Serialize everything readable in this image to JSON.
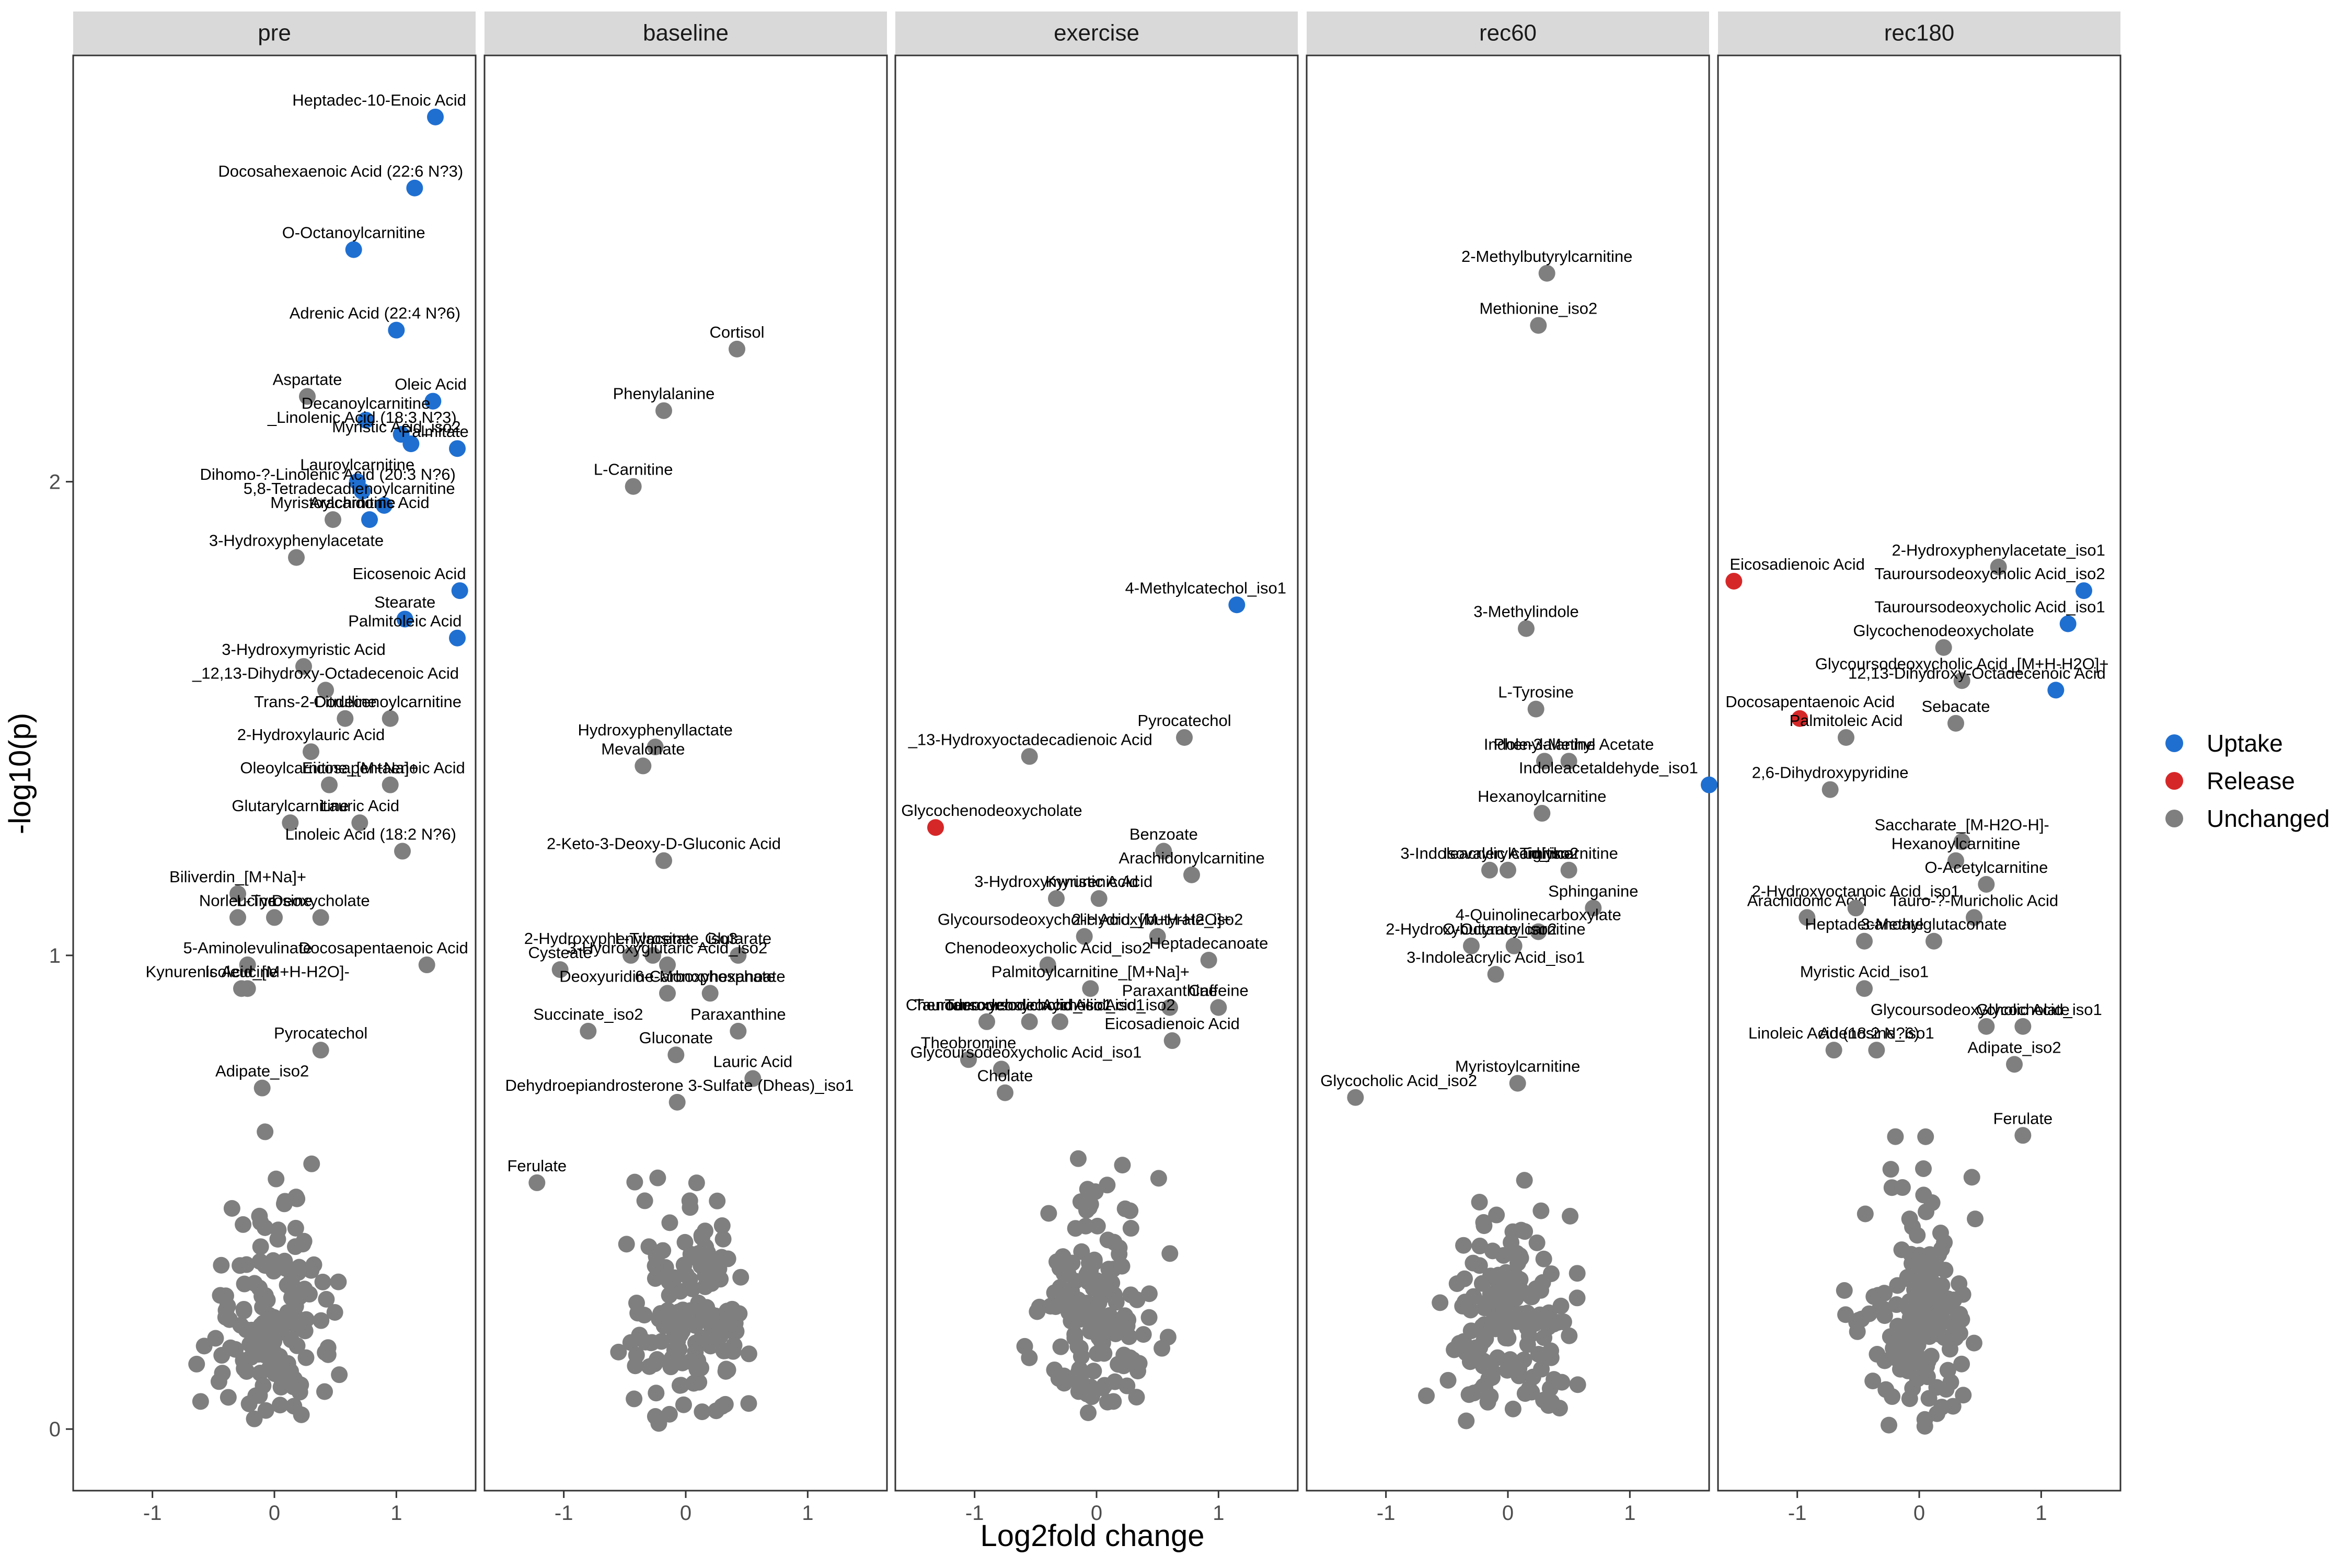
{
  "chart_data": {
    "type": "scatter",
    "xlabel": "Log2fold change",
    "ylabel": "-log10(p)",
    "x_ticks": [
      "-1",
      "0",
      "1"
    ],
    "y_ticks": [
      "0",
      "1",
      "2"
    ],
    "xlim": [
      -1.65,
      1.65
    ],
    "ylim": [
      -0.13,
      2.9
    ],
    "colors": {
      "Uptake": "#1f6fd1",
      "Release": "#d62728",
      "Unchanged": "#7f7f7f"
    },
    "legend": {
      "placement": "right",
      "items": [
        {
          "label": "Uptake",
          "color": "#1f6fd1"
        },
        {
          "label": "Release",
          "color": "#d62728"
        },
        {
          "label": "Unchanged",
          "color": "#7f7f7f"
        }
      ]
    },
    "panels": [
      {
        "name": "pre",
        "labeled_points": [
          {
            "label": "Heptadec-10-Enoic Acid",
            "x": 1.32,
            "y": 2.77,
            "status": "Uptake"
          },
          {
            "label": "Docosahexaenoic Acid (22:6 N?3)",
            "x": 1.15,
            "y": 2.62,
            "status": "Uptake"
          },
          {
            "label": "O-Octanoylcarnitine",
            "x": 0.65,
            "y": 2.49,
            "status": "Uptake"
          },
          {
            "label": "Adrenic Acid (22:4 N?6)",
            "x": 1.0,
            "y": 2.32,
            "status": "Uptake"
          },
          {
            "label": "Aspartate",
            "x": 0.27,
            "y": 2.18,
            "status": "Unchanged"
          },
          {
            "label": "Oleic Acid",
            "x": 1.3,
            "y": 2.17,
            "status": "Uptake"
          },
          {
            "label": "Decanoylcarnitine",
            "x": 0.75,
            "y": 2.13,
            "status": "Uptake"
          },
          {
            "label": "_Linolenic Acid (18:3 N?3)",
            "x": 1.04,
            "y": 2.1,
            "status": "Uptake"
          },
          {
            "label": "Myristic Acid_iso2",
            "x": 1.12,
            "y": 2.08,
            "status": "Uptake"
          },
          {
            "label": "Lauroylcarnitine",
            "x": 0.68,
            "y": 2.0,
            "status": "Uptake"
          },
          {
            "label": "Palmitate",
            "x": 1.5,
            "y": 2.07,
            "status": "Uptake"
          },
          {
            "label": "Dihomo-?-Linolenic Acid (20:3 N?6)",
            "x": 0.72,
            "y": 1.98,
            "status": "Uptake"
          },
          {
            "label": "5,8-Tetradecadienoylcarnitine",
            "x": 0.9,
            "y": 1.95,
            "status": "Uptake"
          },
          {
            "label": "Myristoylcarnitine",
            "x": 0.48,
            "y": 1.92,
            "status": "Unchanged"
          },
          {
            "label": "Arachidonic Acid",
            "x": 0.78,
            "y": 1.92,
            "status": "Uptake"
          },
          {
            "label": "3-Hydroxyphenylacetate",
            "x": 0.18,
            "y": 1.84,
            "status": "Unchanged"
          },
          {
            "label": "Eicosenoic Acid",
            "x": 1.52,
            "y": 1.77,
            "status": "Uptake"
          },
          {
            "label": "Stearate",
            "x": 1.07,
            "y": 1.71,
            "status": "Uptake"
          },
          {
            "label": "Palmitoleic Acid",
            "x": 1.5,
            "y": 1.67,
            "status": "Uptake"
          },
          {
            "label": "3-Hydroxymyristic Acid",
            "x": 0.24,
            "y": 1.61,
            "status": "Unchanged"
          },
          {
            "label": "_12,13-Dihydroxy-Octadecenoic Acid",
            "x": 0.42,
            "y": 1.56,
            "status": "Unchanged"
          },
          {
            "label": "Citrulline",
            "x": 0.58,
            "y": 1.5,
            "status": "Unchanged"
          },
          {
            "label": "Trans-2-Dodecenoylcarnitine",
            "x": 0.95,
            "y": 1.5,
            "status": "Unchanged"
          },
          {
            "label": "2-Hydroxylauric Acid",
            "x": 0.3,
            "y": 1.43,
            "status": "Unchanged"
          },
          {
            "label": "Oleoylcarnitine_[M+Na]+",
            "x": 0.45,
            "y": 1.36,
            "status": "Unchanged"
          },
          {
            "label": "Eicosapentaenoic Acid",
            "x": 0.95,
            "y": 1.36,
            "status": "Unchanged"
          },
          {
            "label": "Glutarylcarnitine",
            "x": 0.13,
            "y": 1.28,
            "status": "Unchanged"
          },
          {
            "label": "Lauric Acid",
            "x": 0.7,
            "y": 1.28,
            "status": "Unchanged"
          },
          {
            "label": "Linoleic Acid (18:2 N?6)",
            "x": 1.05,
            "y": 1.22,
            "status": "Unchanged"
          },
          {
            "label": "Biliverdin_[M+Na]+",
            "x": -0.3,
            "y": 1.13,
            "status": "Unchanged"
          },
          {
            "label": "Norleucine",
            "x": -0.3,
            "y": 1.08,
            "status": "Unchanged"
          },
          {
            "label": "L-Tyrosine",
            "x": 0.0,
            "y": 1.08,
            "status": "Unchanged"
          },
          {
            "label": "Deoxycholate",
            "x": 0.38,
            "y": 1.08,
            "status": "Unchanged"
          },
          {
            "label": "5-Aminolevulinate",
            "x": -0.22,
            "y": 0.98,
            "status": "Unchanged"
          },
          {
            "label": "Kynurenic Acid_[M+H-H2O]-",
            "x": -0.22,
            "y": 0.93,
            "status": "Unchanged"
          },
          {
            "label": "Docosapentaenoic Acid",
            "x": 1.25,
            "y": 0.98,
            "status": "Unchanged"
          },
          {
            "label": "Isoleucine",
            "x": -0.27,
            "y": 0.93,
            "status": "Unchanged"
          },
          {
            "label": "Pyrocatechol",
            "x": 0.38,
            "y": 0.8,
            "status": "Unchanged"
          },
          {
            "label": "Adipate_iso2",
            "x": -0.1,
            "y": 0.72,
            "status": "Unchanged"
          }
        ]
      },
      {
        "name": "baseline",
        "labeled_points": [
          {
            "label": "Cortisol",
            "x": 0.42,
            "y": 2.28,
            "status": "Unchanged"
          },
          {
            "label": "Phenylalanine",
            "x": -0.18,
            "y": 2.15,
            "status": "Unchanged"
          },
          {
            "label": "L-Carnitine",
            "x": -0.43,
            "y": 1.99,
            "status": "Unchanged"
          },
          {
            "label": "Hydroxyphenyllactate",
            "x": -0.25,
            "y": 1.44,
            "status": "Unchanged"
          },
          {
            "label": "Mevalonate",
            "x": -0.35,
            "y": 1.4,
            "status": "Unchanged"
          },
          {
            "label": "2-Keto-3-Deoxy-D-Gluconic Acid",
            "x": -0.18,
            "y": 1.2,
            "status": "Unchanged"
          },
          {
            "label": "2-Hydroxyphenylacetate_iso3",
            "x": -0.45,
            "y": 1.0,
            "status": "Unchanged"
          },
          {
            "label": "L-Tyrosine",
            "x": -0.27,
            "y": 1.0,
            "status": "Unchanged"
          },
          {
            "label": "Glutarate",
            "x": 0.43,
            "y": 1.0,
            "status": "Unchanged"
          },
          {
            "label": "Cysteate",
            "x": -1.03,
            "y": 0.97,
            "status": "Unchanged"
          },
          {
            "label": "3-Hydroxyglutaric Acid_iso2",
            "x": -0.15,
            "y": 0.98,
            "status": "Unchanged"
          },
          {
            "label": "6-Carboxyhexanoate",
            "x": 0.2,
            "y": 0.92,
            "status": "Unchanged"
          },
          {
            "label": "Deoxyuridine-Monophosphate",
            "x": -0.15,
            "y": 0.92,
            "status": "Unchanged"
          },
          {
            "label": "Paraxanthine",
            "x": 0.43,
            "y": 0.84,
            "status": "Unchanged"
          },
          {
            "label": "Succinate_iso2",
            "x": -0.8,
            "y": 0.84,
            "status": "Unchanged"
          },
          {
            "label": "Gluconate",
            "x": -0.08,
            "y": 0.79,
            "status": "Unchanged"
          },
          {
            "label": "Lauric Acid",
            "x": 0.55,
            "y": 0.74,
            "status": "Unchanged"
          },
          {
            "label": "Dehydroepiandrosterone 3-Sulfate (Dheas)_iso1",
            "x": -0.07,
            "y": 0.69,
            "status": "Unchanged"
          },
          {
            "label": "Ferulate",
            "x": -1.22,
            "y": 0.52,
            "status": "Unchanged"
          }
        ]
      },
      {
        "name": "exercise",
        "labeled_points": [
          {
            "label": "4-Methylcatechol_iso1",
            "x": 1.15,
            "y": 1.74,
            "status": "Uptake"
          },
          {
            "label": "Pyrocatechol",
            "x": 0.72,
            "y": 1.46,
            "status": "Unchanged"
          },
          {
            "label": "_13-Hydroxyoctadecadienoic Acid",
            "x": -0.55,
            "y": 1.42,
            "status": "Unchanged"
          },
          {
            "label": "Glycochenodeoxycholate",
            "x": -1.32,
            "y": 1.27,
            "status": "Release"
          },
          {
            "label": "Benzoate",
            "x": 0.55,
            "y": 1.22,
            "status": "Unchanged"
          },
          {
            "label": "Arachidonylcarnitine",
            "x": 0.78,
            "y": 1.17,
            "status": "Unchanged"
          },
          {
            "label": "3-Hydroxymyristic Acid",
            "x": -0.33,
            "y": 1.12,
            "status": "Unchanged"
          },
          {
            "label": "Kynurenic Acid",
            "x": 0.02,
            "y": 1.12,
            "status": "Unchanged"
          },
          {
            "label": "Glycoursodeoxycholic Acid_[M+H-H2O]+",
            "x": -0.1,
            "y": 1.04,
            "status": "Unchanged"
          },
          {
            "label": "2-Hydroxybutyrate_iso2",
            "x": 0.5,
            "y": 1.04,
            "status": "Unchanged"
          },
          {
            "label": "Heptadecanoate",
            "x": 0.92,
            "y": 0.99,
            "status": "Unchanged"
          },
          {
            "label": "Chenodeoxycholic Acid_iso2",
            "x": -0.4,
            "y": 0.98,
            "status": "Unchanged"
          },
          {
            "label": "Palmitoylcarnitine_[M+Na]+",
            "x": -0.05,
            "y": 0.93,
            "status": "Unchanged"
          },
          {
            "label": "Paraxanthine",
            "x": 0.6,
            "y": 0.89,
            "status": "Unchanged"
          },
          {
            "label": "Caffeine",
            "x": 1.0,
            "y": 0.89,
            "status": "Unchanged"
          },
          {
            "label": "Chenodeoxycholic Acid_iso1",
            "x": -0.9,
            "y": 0.86,
            "status": "Unchanged"
          },
          {
            "label": "Tauroursodeoxycholic Acid_iso1",
            "x": -0.55,
            "y": 0.86,
            "status": "Unchanged"
          },
          {
            "label": "Tauroursodeoxycholic Acid_iso2",
            "x": -0.3,
            "y": 0.86,
            "status": "Unchanged"
          },
          {
            "label": "Eicosadienoic Acid",
            "x": 0.62,
            "y": 0.82,
            "status": "Unchanged"
          },
          {
            "label": "Theobromine",
            "x": -1.05,
            "y": 0.78,
            "status": "Unchanged"
          },
          {
            "label": "Glycoursodeoxycholic Acid_iso1",
            "x": -0.78,
            "y": 0.76,
            "status": "Unchanged"
          },
          {
            "label": "Cholate",
            "x": -0.75,
            "y": 0.71,
            "status": "Unchanged"
          }
        ]
      },
      {
        "name": "rec60",
        "labeled_points": [
          {
            "label": "2-Methylbutyrylcarnitine",
            "x": 0.32,
            "y": 2.44,
            "status": "Unchanged"
          },
          {
            "label": "Methionine_iso2",
            "x": 0.25,
            "y": 2.33,
            "status": "Unchanged"
          },
          {
            "label": "3-Methylindole",
            "x": 0.15,
            "y": 1.69,
            "status": "Unchanged"
          },
          {
            "label": "L-Tyrosine",
            "x": 0.23,
            "y": 1.52,
            "status": "Unchanged"
          },
          {
            "label": "Indole-3-Methyl Acetate",
            "x": 0.5,
            "y": 1.41,
            "status": "Unchanged"
          },
          {
            "label": "Phenylalanine",
            "x": 0.3,
            "y": 1.41,
            "status": "Unchanged"
          },
          {
            "label": "Indoleacetaldehyde_iso1",
            "x": 1.65,
            "y": 1.36,
            "status": "Uptake"
          },
          {
            "label": "Hexanoylcarnitine",
            "x": 0.28,
            "y": 1.3,
            "status": "Unchanged"
          },
          {
            "label": "3-Indoleacrylic Acid_iso2",
            "x": -0.15,
            "y": 1.18,
            "status": "Unchanged"
          },
          {
            "label": "Isovalerylcarnitine",
            "x": 0.0,
            "y": 1.18,
            "status": "Unchanged"
          },
          {
            "label": "Tiglylcarnitine",
            "x": 0.5,
            "y": 1.18,
            "status": "Unchanged"
          },
          {
            "label": "Sphinganine",
            "x": 0.7,
            "y": 1.1,
            "status": "Unchanged"
          },
          {
            "label": "4-Quinolinecarboxylate",
            "x": 0.25,
            "y": 1.05,
            "status": "Unchanged"
          },
          {
            "label": "2-Hydroxybutyrate_iso2",
            "x": -0.3,
            "y": 1.02,
            "status": "Unchanged"
          },
          {
            "label": "O-Octanoylcarnitine",
            "x": 0.05,
            "y": 1.02,
            "status": "Unchanged"
          },
          {
            "label": "3-Indoleacrylic Acid_iso1",
            "x": -0.1,
            "y": 0.96,
            "status": "Unchanged"
          },
          {
            "label": "Myristoylcarnitine",
            "x": 0.08,
            "y": 0.73,
            "status": "Unchanged"
          },
          {
            "label": "Glycocholic Acid_iso2",
            "x": -1.25,
            "y": 0.7,
            "status": "Unchanged"
          }
        ]
      },
      {
        "name": "rec180",
        "labeled_points": [
          {
            "label": "2-Hydroxyphenylacetate_iso1",
            "x": 0.65,
            "y": 1.82,
            "status": "Unchanged"
          },
          {
            "label": "Eicosadienoic Acid",
            "x": -1.52,
            "y": 1.79,
            "status": "Release"
          },
          {
            "label": "Tauroursodeoxycholic Acid_iso2",
            "x": 1.35,
            "y": 1.77,
            "status": "Uptake"
          },
          {
            "label": "Tauroursodeoxycholic Acid_iso1",
            "x": 1.22,
            "y": 1.7,
            "status": "Uptake"
          },
          {
            "label": "Glycochenodeoxycholate",
            "x": 0.2,
            "y": 1.65,
            "status": "Unchanged"
          },
          {
            "label": "Glycoursodeoxycholic Acid_[M+H-H2O]+",
            "x": 0.35,
            "y": 1.58,
            "status": "Unchanged"
          },
          {
            "label": "Docosapentaenoic Acid",
            "x": -0.98,
            "y": 1.5,
            "status": "Release"
          },
          {
            "label": "12,13-Dihydroxy-Octadecenoic Acid",
            "x": 1.12,
            "y": 1.56,
            "status": "Uptake"
          },
          {
            "label": "Sebacate",
            "x": 0.3,
            "y": 1.49,
            "status": "Unchanged"
          },
          {
            "label": "Palmitoleic Acid",
            "x": -0.6,
            "y": 1.46,
            "status": "Unchanged"
          },
          {
            "label": "2,6-Dihydroxypyridine",
            "x": -0.73,
            "y": 1.35,
            "status": "Unchanged"
          },
          {
            "label": "Saccharate_[M-H2O-H]-",
            "x": 0.35,
            "y": 1.24,
            "status": "Unchanged"
          },
          {
            "label": "Hexanoylcarnitine",
            "x": 0.3,
            "y": 1.2,
            "status": "Unchanged"
          },
          {
            "label": "O-Acetylcarnitine",
            "x": 0.55,
            "y": 1.15,
            "status": "Unchanged"
          },
          {
            "label": "Arachidonic Acid",
            "x": -0.92,
            "y": 1.08,
            "status": "Unchanged"
          },
          {
            "label": "Tauro-?-Muricholic Acid",
            "x": 0.45,
            "y": 1.08,
            "status": "Unchanged"
          },
          {
            "label": "2-Hydroxyoctanoic Acid_iso1",
            "x": -0.52,
            "y": 1.1,
            "status": "Unchanged"
          },
          {
            "label": "Heptadecanoate",
            "x": -0.45,
            "y": 1.03,
            "status": "Unchanged"
          },
          {
            "label": "3-Methylglutaconate",
            "x": 0.12,
            "y": 1.03,
            "status": "Unchanged"
          },
          {
            "label": "Myristic Acid_iso1",
            "x": -0.45,
            "y": 0.93,
            "status": "Unchanged"
          },
          {
            "label": "Glycoursodeoxycholic Acid_iso1",
            "x": 0.55,
            "y": 0.85,
            "status": "Unchanged"
          },
          {
            "label": "Glycocholate",
            "x": 0.85,
            "y": 0.85,
            "status": "Unchanged"
          },
          {
            "label": "Linoleic Acid (18:2 N?6)",
            "x": -0.7,
            "y": 0.8,
            "status": "Unchanged"
          },
          {
            "label": "Adenosine_iso1",
            "x": -0.35,
            "y": 0.8,
            "status": "Unchanged"
          },
          {
            "label": "Adipate_iso2",
            "x": 0.78,
            "y": 0.77,
            "status": "Unchanged"
          },
          {
            "label": "Ferulate",
            "x": 0.85,
            "y": 0.62,
            "status": "Unchanged"
          }
        ]
      }
    ]
  }
}
